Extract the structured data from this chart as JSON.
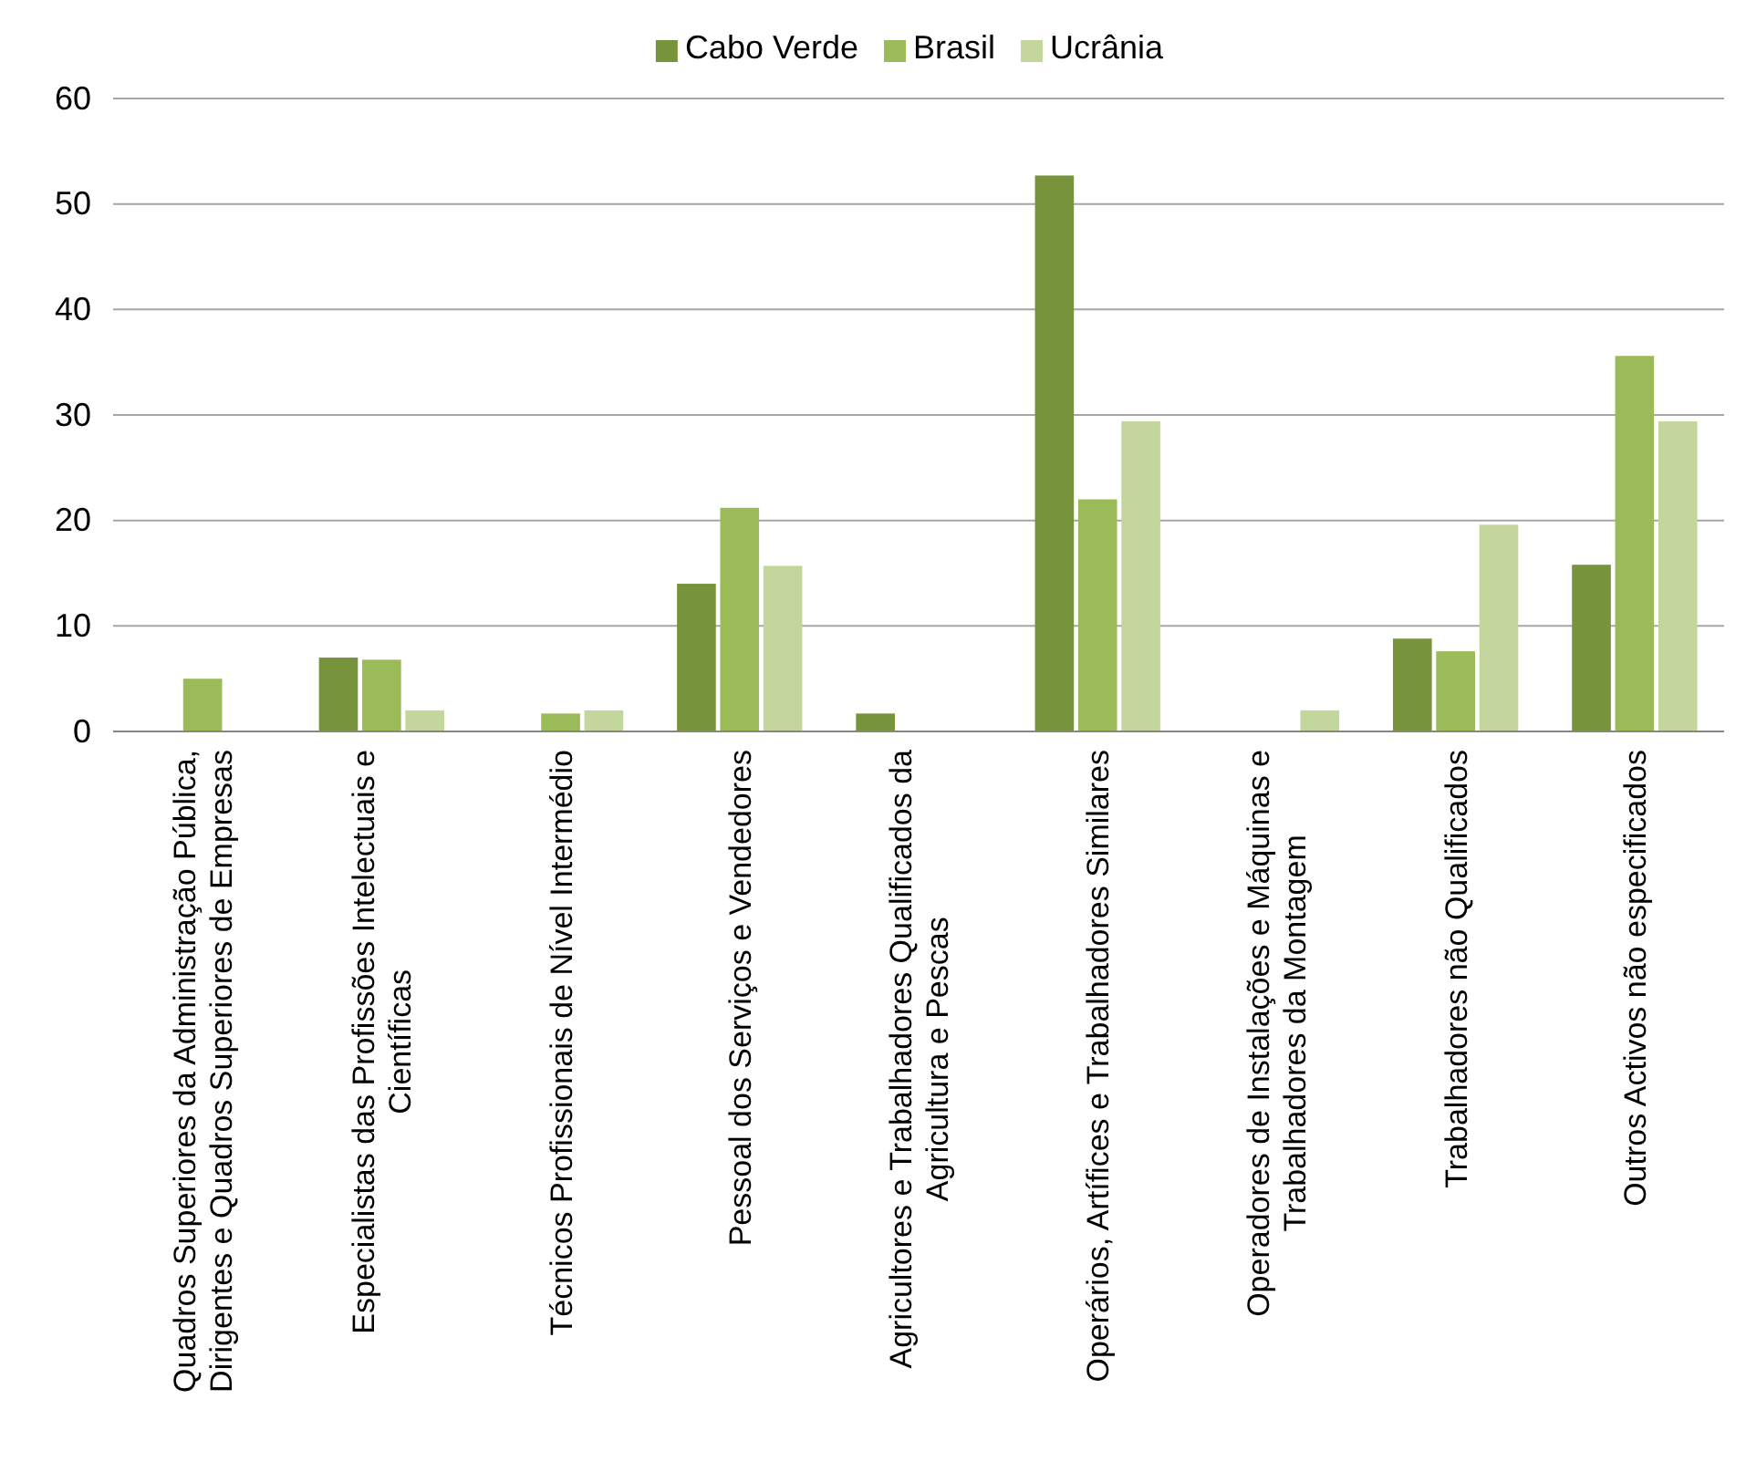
{
  "chart_data": {
    "type": "bar",
    "categories": [
      "Quadros Superiores da Administração Pública, Dirigentes e Quadros Superiores de Empresas",
      "Especialistas das Profissões Intelectuais e Científicas",
      "Técnicos Profissionais de Nível Intermédio",
      "Pessoal dos Serviços e Vendedores",
      "Agricultores e Trabalhadores Qualificados da Agricultura e Pescas",
      "Operários, Artífices e Trabalhadores Similares",
      "Operadores de Instalações e Máquinas e Trabalhadores da Montagem",
      "Trabalhadores não Qualificados",
      "Outros Activos não especificados"
    ],
    "series": [
      {
        "name": "Cabo Verde",
        "color": "#77933c",
        "values": [
          0,
          7,
          0,
          14,
          1.7,
          52.7,
          0,
          8.8,
          15.8
        ]
      },
      {
        "name": "Brasil",
        "color": "#9bbb59",
        "values": [
          5,
          6.8,
          1.7,
          21.2,
          0,
          22,
          0,
          7.6,
          35.6
        ]
      },
      {
        "name": "Ucrânia",
        "color": "#c3d69b",
        "values": [
          0,
          2,
          2,
          15.7,
          0,
          29.4,
          2,
          19.6,
          29.4
        ]
      }
    ],
    "ylim": [
      0,
      60
    ],
    "yticks": [
      0,
      10,
      20,
      30,
      40,
      50,
      60
    ],
    "grid": "y",
    "legend": "top"
  }
}
